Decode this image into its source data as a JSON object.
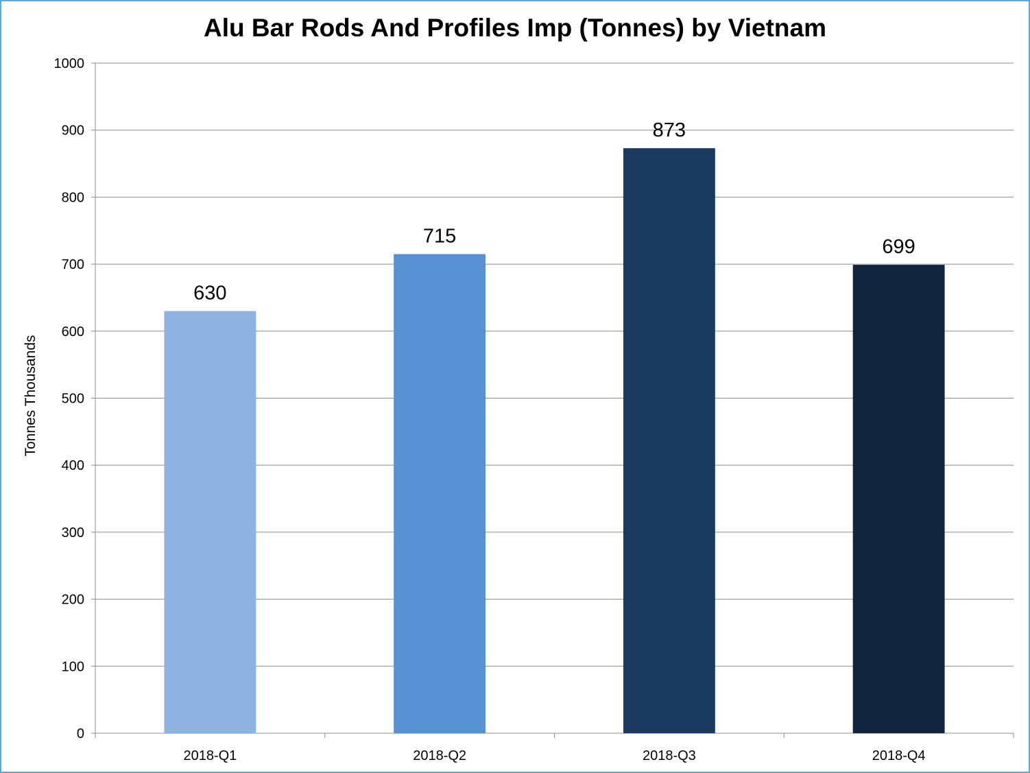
{
  "chart_data": {
    "type": "bar",
    "title": "Alu Bar Rods And Profiles Imp (Tonnes) by Vietnam",
    "ylabel": "Tonnes  Thousands",
    "xlabel": "",
    "categories": [
      "2018-Q1",
      "2018-Q2",
      "2018-Q3",
      "2018-Q4"
    ],
    "values": [
      630,
      715,
      873,
      699
    ],
    "data_labels": [
      "630",
      "715",
      "873",
      "699"
    ],
    "ylim": [
      0,
      1000
    ],
    "yticks": [
      0,
      100,
      200,
      300,
      400,
      500,
      600,
      700,
      800,
      900,
      1000
    ],
    "grid": true,
    "legend": "none",
    "bar_colors": [
      "#8eb3e1",
      "#5790d3",
      "#1b3a60",
      "#13243f"
    ],
    "gridline_color": "#8c8c8c",
    "border_color": "#5aa9d6"
  }
}
